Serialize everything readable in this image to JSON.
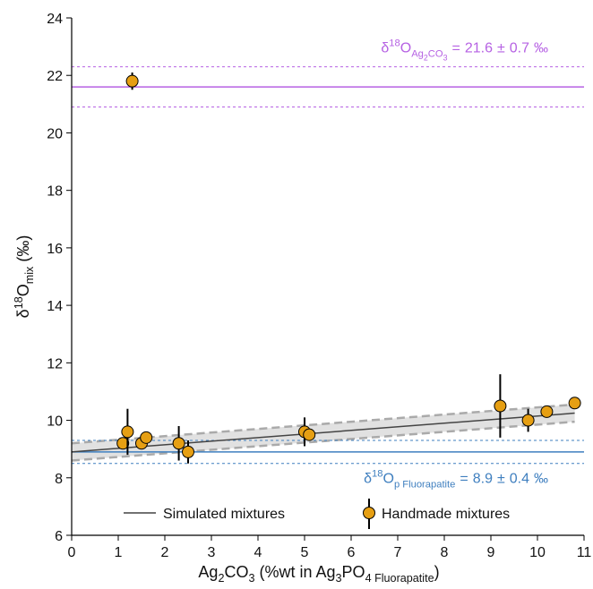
{
  "chart_data": {
    "type": "scatter",
    "xlabel_parts": [
      {
        "text": "Ag",
        "style": "normal"
      },
      {
        "text": "2",
        "style": "sub"
      },
      {
        "text": "CO",
        "style": "normal"
      },
      {
        "text": "3",
        "style": "sub"
      },
      {
        "text": " (%wt in Ag",
        "style": "normal"
      },
      {
        "text": "3",
        "style": "sub"
      },
      {
        "text": "PO",
        "style": "normal"
      },
      {
        "text": "4 Fluorapatite",
        "style": "sub"
      },
      {
        "text": ")",
        "style": "normal"
      }
    ],
    "ylabel_parts": [
      {
        "text": "δ",
        "style": "normal"
      },
      {
        "text": "18",
        "style": "sup"
      },
      {
        "text": "O",
        "style": "normal"
      },
      {
        "text": "mix",
        "style": "sub"
      },
      {
        "text": " (‰)",
        "style": "normal"
      }
    ],
    "xlim": [
      0,
      11
    ],
    "xticks": [
      0,
      1,
      2,
      3,
      4,
      5,
      6,
      7,
      8,
      9,
      10,
      11
    ],
    "ylim": [
      6,
      24
    ],
    "yticks": [
      6,
      8,
      10,
      12,
      14,
      16,
      18,
      20,
      22,
      24
    ],
    "legend": "lower center",
    "reference_lines": [
      {
        "label_parts": [
          {
            "text": "δ",
            "style": "normal"
          },
          {
            "text": "18",
            "style": "sup"
          },
          {
            "text": "O",
            "style": "normal"
          },
          {
            "text": "Ag",
            "style": "sub"
          },
          {
            "text": "2",
            "style": "subsub"
          },
          {
            "text": "CO",
            "style": "sub"
          },
          {
            "text": "3",
            "style": "subsub"
          }
        ],
        "equals": "=",
        "value": 21.6,
        "plus_minus": "±",
        "uncertainty": 0.7,
        "unit": "‰",
        "color": "#b662e3"
      },
      {
        "label_parts": [
          {
            "text": "δ",
            "style": "normal"
          },
          {
            "text": "18",
            "style": "sup"
          },
          {
            "text": "O",
            "style": "normal"
          },
          {
            "text": "p Fluorapatite",
            "style": "sub"
          }
        ],
        "equals": "=",
        "value": 8.9,
        "plus_minus": "±",
        "uncertainty": 0.4,
        "unit": "‰",
        "color": "#3f7fbf"
      }
    ],
    "series": [
      {
        "name": "Simulated mixtures",
        "kind": "line",
        "color": "#444444",
        "band_color": "#d4d4d4",
        "band_line_color": "#aaaaaa",
        "x": [
          0,
          10.8
        ],
        "values": [
          8.9,
          10.25
        ],
        "upper": [
          9.2,
          10.55
        ],
        "lower": [
          8.6,
          9.95
        ]
      },
      {
        "name": "Handmade mixtures",
        "kind": "points",
        "color": "#e69f13",
        "x": [
          1.3,
          1.1,
          1.2,
          1.5,
          1.6,
          2.3,
          2.5,
          5.0,
          5.1,
          9.2,
          9.8,
          10.2,
          10.8
        ],
        "values": [
          21.8,
          9.2,
          9.6,
          9.2,
          9.4,
          9.2,
          8.9,
          9.6,
          9.5,
          10.5,
          10.0,
          10.3,
          10.6
        ],
        "errors": [
          0.3,
          null,
          0.8,
          null,
          null,
          0.6,
          0.4,
          0.5,
          null,
          1.1,
          0.4,
          null,
          null
        ]
      }
    ]
  }
}
